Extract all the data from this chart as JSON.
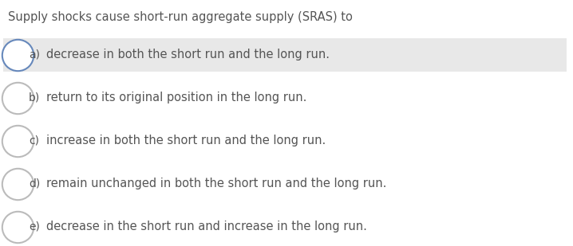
{
  "title": "Supply shocks cause short-run aggregate supply (SRAS) to",
  "title_fontsize": 10.5,
  "title_color": "#555555",
  "options": [
    {
      "label": "a)",
      "text": "decrease in both the short run and the long run.",
      "highlighted": true,
      "circle_color": "#6688bb"
    },
    {
      "label": "b)",
      "text": "return to its original position in the long run.",
      "highlighted": false,
      "circle_color": "#bbbbbb"
    },
    {
      "label": "c)",
      "text": "increase in both the short run and the long run.",
      "highlighted": false,
      "circle_color": "#bbbbbb"
    },
    {
      "label": "d)",
      "text": "remain unchanged in both the short run and the long run.",
      "highlighted": false,
      "circle_color": "#bbbbbb"
    },
    {
      "label": "e)",
      "text": "decrease in the short run and increase in the long run.",
      "highlighted": false,
      "circle_color": "#bbbbbb"
    }
  ],
  "bg_color": "#ffffff",
  "highlight_color": "#e8e8e8",
  "text_color": "#555555",
  "label_color": "#555555",
  "option_fontsize": 10.5,
  "label_fontsize": 10.0,
  "fig_width": 7.18,
  "fig_height": 3.09,
  "dpi": 100
}
